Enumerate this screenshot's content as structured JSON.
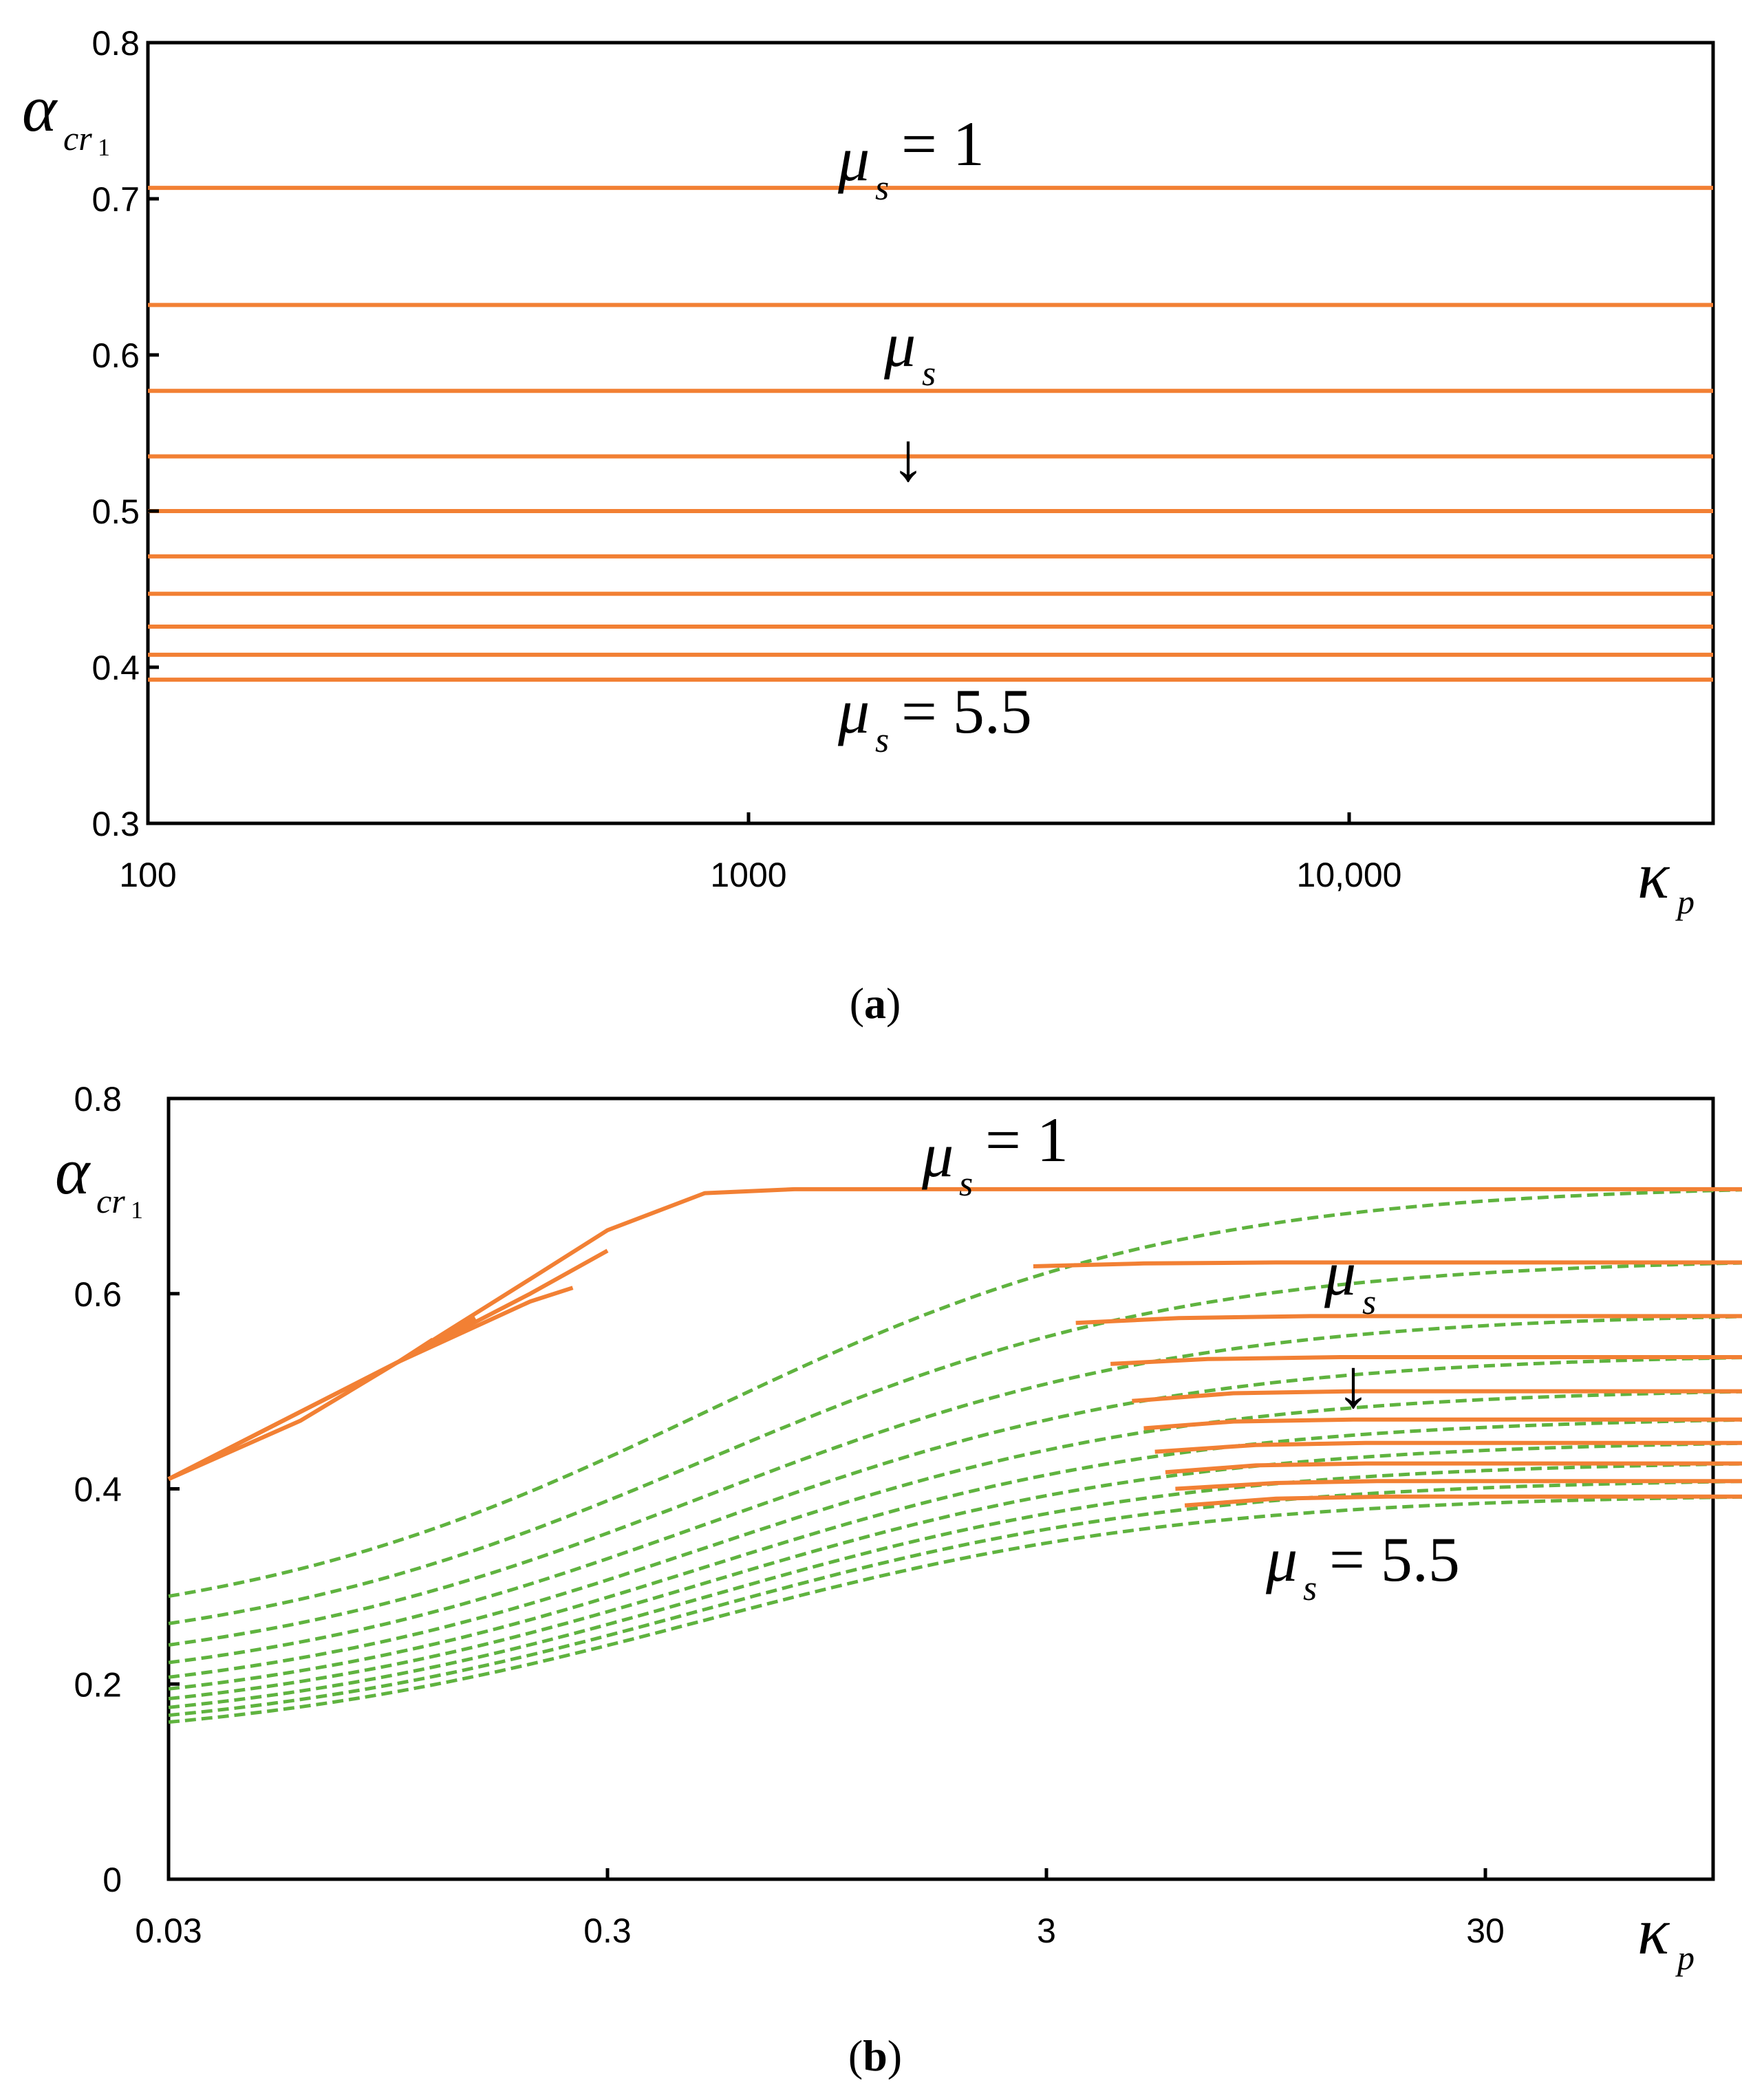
{
  "chart_data": [
    {
      "panel": "a",
      "caption_letter": "a",
      "type": "line",
      "x_scale": "log",
      "xlim": [
        100,
        40000
      ],
      "ylim": [
        0.3,
        0.8
      ],
      "x_ticks": [
        100,
        1000,
        10000
      ],
      "x_tick_labels": [
        "100",
        "1000",
        "10,000"
      ],
      "y_ticks": [
        0.3,
        0.4,
        0.5,
        0.6,
        0.7,
        0.8
      ],
      "y_tick_labels": [
        "0.3",
        "0.4",
        "0.5",
        "0.6",
        "0.7",
        "0.8"
      ],
      "xlabel": "κ",
      "xlabel_sub": "p",
      "ylabel": "α",
      "ylabel_sub": "cr",
      "ylabel_subsub": "1",
      "annotations": {
        "top_symbol": "μ",
        "top_sub": "s",
        "top_text": "= 1",
        "mid_symbol": "μ",
        "mid_sub": "s",
        "arrow": "↓",
        "bottom_symbol": "μ",
        "bottom_sub": "s",
        "bottom_text": "= 5.5"
      },
      "series": [
        {
          "name": "μs=1.0",
          "value": 0.707
        },
        {
          "name": "μs=1.5",
          "value": 0.632
        },
        {
          "name": "μs=2.0",
          "value": 0.577
        },
        {
          "name": "μs=2.5",
          "value": 0.535
        },
        {
          "name": "μs=3.0",
          "value": 0.5
        },
        {
          "name": "μs=3.5",
          "value": 0.471
        },
        {
          "name": "μs=4.0",
          "value": 0.447
        },
        {
          "name": "μs=4.5",
          "value": 0.426
        },
        {
          "name": "μs=5.0",
          "value": 0.408
        },
        {
          "name": "μs=5.5",
          "value": 0.392
        }
      ]
    },
    {
      "panel": "b",
      "caption_letter": "b",
      "type": "line",
      "x_scale": "log",
      "xlim": [
        0.03,
        130
      ],
      "ylim": [
        0,
        0.8
      ],
      "x_ticks": [
        0.03,
        0.3,
        3,
        30
      ],
      "x_tick_labels": [
        "0.03",
        "0.3",
        "3",
        "30"
      ],
      "y_ticks": [
        0,
        0.2,
        0.4,
        0.6,
        0.8
      ],
      "y_tick_labels": [
        "0",
        "0.2",
        "0.4",
        "0.6",
        "0.8"
      ],
      "xlabel": "κ",
      "xlabel_sub": "p",
      "ylabel": "α",
      "ylabel_sub": "cr",
      "ylabel_subsub": "1",
      "annotations": {
        "top_symbol": "μ",
        "top_sub": "s",
        "top_text": "= 1",
        "mid_symbol": "μ",
        "mid_sub": "s",
        "arrow": "↓",
        "bottom_symbol": "μ",
        "bottom_sub": "s",
        "bottom_text": "= 5.5"
      },
      "dashed_series": [
        {
          "name": "μs=1.0",
          "start": 0.29,
          "plateau": 0.707
        },
        {
          "name": "μs=1.5",
          "start": 0.262,
          "plateau": 0.632
        },
        {
          "name": "μs=2.0",
          "start": 0.24,
          "plateau": 0.577
        },
        {
          "name": "μs=2.5",
          "start": 0.222,
          "plateau": 0.535
        },
        {
          "name": "μs=3.0",
          "start": 0.207,
          "plateau": 0.5
        },
        {
          "name": "μs=3.5",
          "start": 0.195,
          "plateau": 0.471
        },
        {
          "name": "μs=4.0",
          "start": 0.185,
          "plateau": 0.447
        },
        {
          "name": "μs=4.5",
          "start": 0.176,
          "plateau": 0.426
        },
        {
          "name": "μs=5.0",
          "start": 0.168,
          "plateau": 0.408
        },
        {
          "name": "μs=5.5",
          "start": 0.161,
          "plateau": 0.392
        }
      ],
      "solid_series": [
        {
          "name": "μs=1.0 left",
          "x": [
            0.03,
            0.06,
            0.1,
            0.2,
            0.3,
            0.5,
            0.8,
            1.2,
            130
          ],
          "y": [
            0.41,
            0.47,
            0.53,
            0.615,
            0.665,
            0.703,
            0.707,
            0.707,
            0.707
          ]
        },
        {
          "name": "μs=1.5 left",
          "x": [
            0.03,
            0.1,
            0.2,
            0.3
          ],
          "y": [
            0.41,
            0.53,
            0.6,
            0.644
          ]
        },
        {
          "name": "μs=2.0 left",
          "x": [
            0.03,
            0.1,
            0.2,
            0.25
          ],
          "y": [
            0.41,
            0.53,
            0.592,
            0.606
          ]
        },
        {
          "name": "μs=2.5 left",
          "x": [
            0.03,
            0.1,
            0.15
          ],
          "y": [
            0.41,
            0.53,
            0.575
          ]
        },
        {
          "name": "μs=3.0 left",
          "x": [
            0.03,
            0.1,
            0.12
          ],
          "y": [
            0.41,
            0.53,
            0.553
          ]
        },
        {
          "name": "μs=1.5 right",
          "x": [
            2.8,
            5,
            10,
            130
          ],
          "y": [
            0.628,
            0.631,
            0.632,
            0.632
          ]
        },
        {
          "name": "μs=2.0 right",
          "x": [
            3.5,
            6,
            12,
            130
          ],
          "y": [
            0.57,
            0.575,
            0.577,
            0.577
          ]
        },
        {
          "name": "μs=2.5 right",
          "x": [
            4.2,
            7,
            14,
            130
          ],
          "y": [
            0.528,
            0.533,
            0.535,
            0.535
          ]
        },
        {
          "name": "μs=3.0 right",
          "x": [
            4.7,
            8,
            15,
            130
          ],
          "y": [
            0.49,
            0.498,
            0.5,
            0.5
          ]
        },
        {
          "name": "μs=3.5 right",
          "x": [
            5.0,
            8,
            15,
            130
          ],
          "y": [
            0.462,
            0.469,
            0.471,
            0.471
          ]
        },
        {
          "name": "μs=4.0 right",
          "x": [
            5.3,
            9,
            16,
            130
          ],
          "y": [
            0.438,
            0.445,
            0.447,
            0.447
          ]
        },
        {
          "name": "μs=4.5 right",
          "x": [
            5.6,
            9,
            16,
            130
          ],
          "y": [
            0.417,
            0.424,
            0.426,
            0.426
          ]
        },
        {
          "name": "μs=5.0 right",
          "x": [
            5.9,
            10,
            17,
            130
          ],
          "y": [
            0.4,
            0.406,
            0.408,
            0.408
          ]
        },
        {
          "name": "μs=5.5 right",
          "x": [
            6.2,
            10,
            18,
            130
          ],
          "y": [
            0.383,
            0.39,
            0.392,
            0.392
          ]
        }
      ]
    }
  ]
}
